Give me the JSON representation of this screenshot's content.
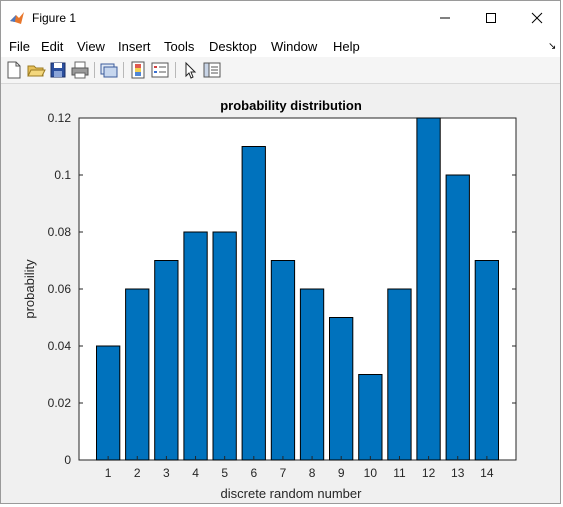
{
  "window": {
    "title": "Figure 1"
  },
  "menu": [
    "File",
    "Edit",
    "View",
    "Insert",
    "Tools",
    "Desktop",
    "Window",
    "Help"
  ],
  "toolbar_icons": [
    "new-figure-icon",
    "open-file-icon",
    "save-icon",
    "print-icon",
    "link-plot-icon",
    "colorbar-icon",
    "legend-icon",
    "pointer-icon",
    "property-inspector-icon"
  ],
  "colors": {
    "bar": "#0072BD",
    "axes_bg": "#ffffff",
    "figure_bg": "#f0f0f0"
  },
  "chart_data": {
    "type": "bar",
    "title": "probability distribution",
    "xlabel": "discrete random number",
    "ylabel": "probability",
    "categories": [
      "1",
      "2",
      "3",
      "4",
      "5",
      "6",
      "7",
      "8",
      "9",
      "10",
      "11",
      "12",
      "13",
      "14"
    ],
    "values": [
      0.04,
      0.06,
      0.07,
      0.08,
      0.08,
      0.11,
      0.07,
      0.06,
      0.05,
      0.03,
      0.06,
      0.12,
      0.1,
      0.07
    ],
    "ylim": [
      0,
      0.12
    ],
    "yticks": [
      "0",
      "0.02",
      "0.04",
      "0.06",
      "0.08",
      "0.1",
      "0.12"
    ],
    "grid": false
  }
}
